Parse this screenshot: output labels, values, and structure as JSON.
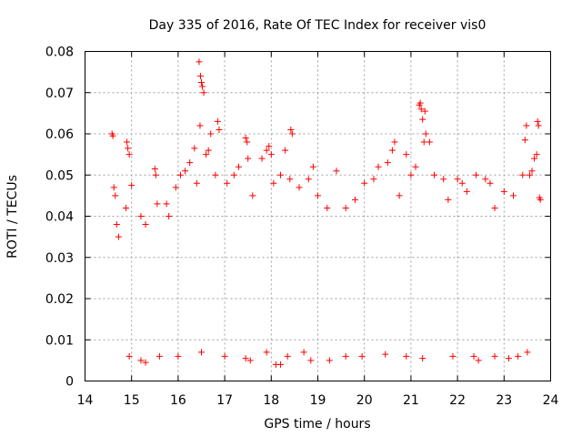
{
  "chart_data": {
    "type": "scatter",
    "title": "Day 335 of 2016, Rate Of TEC Index for receiver vis0",
    "xlabel": "GPS time / hours",
    "ylabel": "ROTI / TECUs",
    "xlim": [
      14,
      24
    ],
    "ylim": [
      0,
      0.08
    ],
    "xticks": [
      "14",
      "15",
      "16",
      "17",
      "18",
      "19",
      "20",
      "21",
      "22",
      "23",
      "24"
    ],
    "yticks": [
      "0",
      "0.01",
      "0.02",
      "0.03",
      "0.04",
      "0.05",
      "0.06",
      "0.07",
      "0.08"
    ],
    "grid": true,
    "marker": "plus",
    "color": "#ff0000",
    "series": [
      {
        "points": [
          [
            14.58,
            0.06
          ],
          [
            14.6,
            0.0595
          ],
          [
            14.62,
            0.047
          ],
          [
            14.65,
            0.045
          ],
          [
            14.68,
            0.038
          ],
          [
            14.72,
            0.035
          ],
          [
            14.9,
            0.058
          ],
          [
            14.92,
            0.0565
          ],
          [
            14.95,
            0.055
          ],
          [
            14.88,
            0.042
          ],
          [
            15.0,
            0.0475
          ],
          [
            15.2,
            0.04
          ],
          [
            15.3,
            0.038
          ],
          [
            15.5,
            0.0515
          ],
          [
            15.52,
            0.05
          ],
          [
            15.55,
            0.043
          ],
          [
            15.75,
            0.043
          ],
          [
            15.8,
            0.04
          ],
          [
            15.95,
            0.047
          ],
          [
            16.05,
            0.05
          ],
          [
            16.15,
            0.051
          ],
          [
            16.25,
            0.053
          ],
          [
            16.35,
            0.0565
          ],
          [
            16.4,
            0.048
          ],
          [
            16.45,
            0.0775
          ],
          [
            16.48,
            0.074
          ],
          [
            16.5,
            0.0725
          ],
          [
            16.52,
            0.0715
          ],
          [
            16.55,
            0.07
          ],
          [
            16.47,
            0.062
          ],
          [
            16.6,
            0.055
          ],
          [
            16.65,
            0.056
          ],
          [
            16.7,
            0.06
          ],
          [
            16.85,
            0.063
          ],
          [
            16.88,
            0.061
          ],
          [
            16.8,
            0.05
          ],
          [
            17.05,
            0.048
          ],
          [
            17.2,
            0.05
          ],
          [
            17.3,
            0.052
          ],
          [
            17.45,
            0.059
          ],
          [
            17.48,
            0.058
          ],
          [
            17.5,
            0.054
          ],
          [
            17.6,
            0.045
          ],
          [
            17.8,
            0.054
          ],
          [
            17.9,
            0.056
          ],
          [
            17.95,
            0.057
          ],
          [
            18.0,
            0.055
          ],
          [
            18.05,
            0.048
          ],
          [
            18.2,
            0.05
          ],
          [
            18.3,
            0.056
          ],
          [
            18.4,
            0.049
          ],
          [
            18.42,
            0.061
          ],
          [
            18.45,
            0.06
          ],
          [
            18.6,
            0.047
          ],
          [
            18.8,
            0.049
          ],
          [
            18.9,
            0.052
          ],
          [
            19.0,
            0.045
          ],
          [
            19.2,
            0.042
          ],
          [
            19.4,
            0.051
          ],
          [
            19.6,
            0.042
          ],
          [
            19.8,
            0.044
          ],
          [
            20.0,
            0.048
          ],
          [
            20.2,
            0.049
          ],
          [
            20.3,
            0.052
          ],
          [
            20.5,
            0.053
          ],
          [
            20.6,
            0.056
          ],
          [
            20.65,
            0.058
          ],
          [
            20.75,
            0.045
          ],
          [
            20.9,
            0.055
          ],
          [
            21.0,
            0.05
          ],
          [
            21.1,
            0.052
          ],
          [
            21.18,
            0.067
          ],
          [
            21.2,
            0.0675
          ],
          [
            21.22,
            0.066
          ],
          [
            21.25,
            0.0635
          ],
          [
            21.3,
            0.0655
          ],
          [
            21.32,
            0.06
          ],
          [
            21.28,
            0.058
          ],
          [
            21.4,
            0.058
          ],
          [
            21.5,
            0.05
          ],
          [
            21.7,
            0.049
          ],
          [
            21.8,
            0.044
          ],
          [
            22.0,
            0.049
          ],
          [
            22.1,
            0.048
          ],
          [
            22.2,
            0.046
          ],
          [
            22.4,
            0.05
          ],
          [
            22.6,
            0.049
          ],
          [
            22.7,
            0.048
          ],
          [
            22.8,
            0.042
          ],
          [
            23.0,
            0.046
          ],
          [
            23.2,
            0.045
          ],
          [
            23.4,
            0.05
          ],
          [
            23.45,
            0.0585
          ],
          [
            23.48,
            0.062
          ],
          [
            23.55,
            0.05
          ],
          [
            23.6,
            0.051
          ],
          [
            23.65,
            0.054
          ],
          [
            23.7,
            0.055
          ],
          [
            23.72,
            0.063
          ],
          [
            23.74,
            0.062
          ],
          [
            23.76,
            0.0445
          ],
          [
            23.78,
            0.044
          ],
          [
            14.95,
            0.006
          ],
          [
            15.2,
            0.005
          ],
          [
            15.3,
            0.0045
          ],
          [
            15.6,
            0.006
          ],
          [
            16.0,
            0.006
          ],
          [
            16.5,
            0.007
          ],
          [
            17.0,
            0.006
          ],
          [
            17.45,
            0.0055
          ],
          [
            17.55,
            0.005
          ],
          [
            17.9,
            0.007
          ],
          [
            18.1,
            0.004
          ],
          [
            18.2,
            0.004
          ],
          [
            18.35,
            0.006
          ],
          [
            18.7,
            0.007
          ],
          [
            18.85,
            0.005
          ],
          [
            19.25,
            0.005
          ],
          [
            19.6,
            0.006
          ],
          [
            19.95,
            0.006
          ],
          [
            20.45,
            0.0065
          ],
          [
            20.9,
            0.006
          ],
          [
            21.25,
            0.0055
          ],
          [
            21.9,
            0.006
          ],
          [
            22.35,
            0.006
          ],
          [
            22.45,
            0.005
          ],
          [
            22.8,
            0.006
          ],
          [
            23.1,
            0.0055
          ],
          [
            23.3,
            0.006
          ],
          [
            23.5,
            0.007
          ]
        ]
      }
    ]
  }
}
